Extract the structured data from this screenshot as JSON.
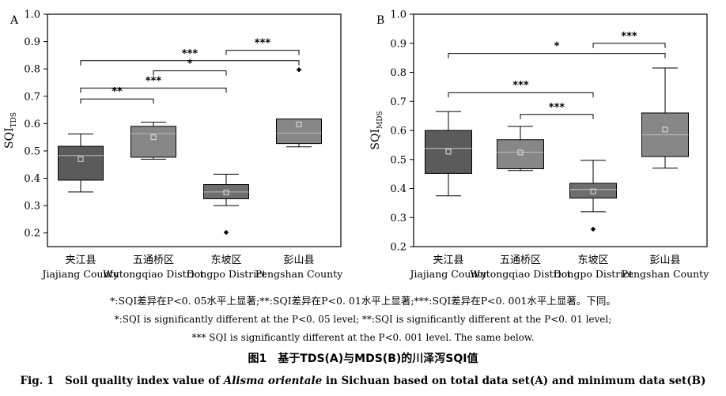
{
  "chart_data": [
    {
      "type": "box",
      "panel_label": "A",
      "ylabel": "SQI",
      "ylabel_sub": "TDS",
      "ylim": [
        0.15,
        1.0
      ],
      "yticks": [
        "0.2",
        "0.3",
        "0.4",
        "0.5",
        "0.6",
        "0.7",
        "0.8",
        "0.9",
        "1.0"
      ],
      "categories": [
        "夹江县",
        "五通桥区",
        "东坡区",
        "彭山县"
      ],
      "categories_en": [
        "Jiajiang County",
        "Wutongqiao District",
        "Dongpo District",
        "Pengshan County"
      ],
      "boxes": [
        {
          "category": "Jiajiang County",
          "whisker_low": 0.35,
          "q1": 0.393,
          "median": 0.483,
          "q3": 0.517,
          "whisker_high": 0.562,
          "mean": 0.47,
          "outliers": []
        },
        {
          "category": "Wutongqiao District",
          "whisker_low": 0.47,
          "q1": 0.477,
          "median": 0.563,
          "q3": 0.59,
          "whisker_high": 0.605,
          "mean": 0.55,
          "outliers": []
        },
        {
          "category": "Dongpo District",
          "whisker_low": 0.3,
          "q1": 0.325,
          "median": 0.35,
          "q3": 0.377,
          "whisker_high": 0.415,
          "mean": 0.348,
          "outliers": [
            0.202
          ]
        },
        {
          "category": "Pengshan County",
          "whisker_low": 0.515,
          "q1": 0.527,
          "median": 0.565,
          "q3": 0.617,
          "whisker_high": 0.617,
          "mean": 0.597,
          "outliers": [
            0.797
          ]
        }
      ],
      "comparisons": [
        {
          "from": 0,
          "to": 1,
          "label": "**",
          "y": 0.69
        },
        {
          "from": 0,
          "to": 2,
          "label": "***",
          "y": 0.73
        },
        {
          "from": 1,
          "to": 2,
          "label": "*",
          "y": 0.793
        },
        {
          "from": 0,
          "to": 3,
          "label": "***",
          "y": 0.83
        },
        {
          "from": 2,
          "to": 3,
          "label": "***",
          "y": 0.868
        }
      ]
    },
    {
      "type": "box",
      "panel_label": "B",
      "ylabel": "SQI",
      "ylabel_sub": "MDS",
      "ylim": [
        0.2,
        1.0
      ],
      "yticks": [
        "0.2",
        "0.3",
        "0.4",
        "0.5",
        "0.6",
        "0.7",
        "0.8",
        "0.9",
        "1.0"
      ],
      "categories": [
        "夹江县",
        "五通桥区",
        "东坡区",
        "彭山县"
      ],
      "categories_en": [
        "Jiajiang County",
        "Wutongqiao District",
        "Dongpo District",
        "Pengshan County"
      ],
      "boxes": [
        {
          "category": "Jiajiang County",
          "whisker_low": 0.375,
          "q1": 0.452,
          "median": 0.538,
          "q3": 0.6,
          "whisker_high": 0.665,
          "mean": 0.527,
          "outliers": []
        },
        {
          "category": "Wutongqiao District",
          "whisker_low": 0.462,
          "q1": 0.468,
          "median": 0.525,
          "q3": 0.568,
          "whisker_high": 0.614,
          "mean": 0.524,
          "outliers": []
        },
        {
          "category": "Dongpo District",
          "whisker_low": 0.32,
          "q1": 0.367,
          "median": 0.397,
          "q3": 0.418,
          "whisker_high": 0.497,
          "mean": 0.39,
          "outliers": [
            0.26
          ]
        },
        {
          "category": "Pengshan County",
          "whisker_low": 0.47,
          "q1": 0.51,
          "median": 0.585,
          "q3": 0.66,
          "whisker_high": 0.815,
          "mean": 0.603,
          "outliers": []
        }
      ],
      "comparisons": [
        {
          "from": 2,
          "to": 3,
          "label": "***",
          "y": 0.9
        },
        {
          "from": 0,
          "to": 3,
          "label": "*",
          "y": 0.865
        },
        {
          "from": 0,
          "to": 2,
          "label": "***",
          "y": 0.73
        },
        {
          "from": 1,
          "to": 2,
          "label": "***",
          "y": 0.655
        }
      ]
    }
  ],
  "notes": {
    "cn": "*:SQI差异在P<0. 05水平上显著;**:SQI差异在P<0. 01水平上显著;***:SQI差异在P<0. 001水平上显著。下同。",
    "en1": "*:SQI is significantly different at the P<0. 05 level; **:SQI is significantly different at the P<0. 01 level;",
    "en2": "*** SQI is significantly different at the P<0. 001 level. The same below."
  },
  "caption": {
    "cn": "图1　基于TDS(A)与MDS(B)的川泽泻SQI值",
    "en_prefix": "Fig. 1　Soil quality index value of ",
    "en_species": "Alisma orientale",
    "en_suffix": " in Sichuan based on total data set(A) and minimum data set(B)"
  },
  "colors": {
    "box_colors": [
      "#5b5b5b",
      "#878787",
      "#6e6e6e",
      "#878787"
    ],
    "median_line": "#b4b4b4",
    "axis": "#000000"
  }
}
